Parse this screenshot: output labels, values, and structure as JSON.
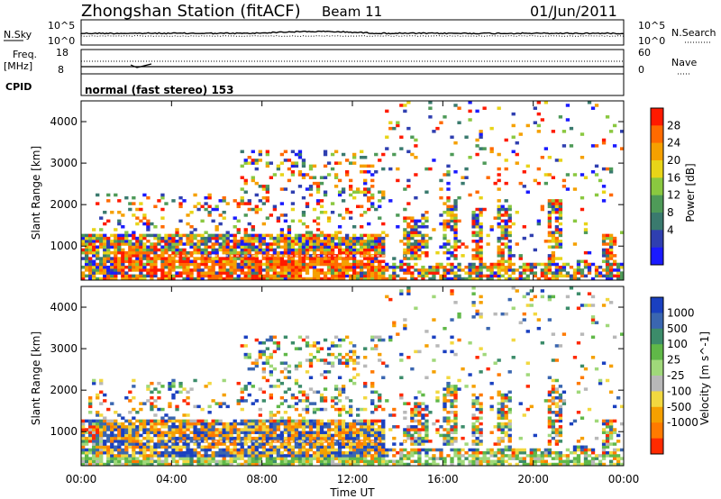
{
  "header": {
    "station": "Zhongshan Station (fitACF)",
    "beam": "Beam 11",
    "date": "01/Jun/2011"
  },
  "noise_panel": {
    "left_label": "N.Sky",
    "right_label": "N.Search",
    "left_ticks": [
      "10^5",
      "10^0"
    ],
    "right_ticks": [
      "10^5",
      "10^0"
    ]
  },
  "freq_panel": {
    "left_label_1": "Freq.",
    "left_label_2": "[MHz]",
    "right_label": "Nave",
    "left_ticks": [
      "18",
      "8"
    ],
    "right_ticks": [
      "60",
      "0"
    ]
  },
  "cpid": {
    "label": "CPID",
    "mode": "normal (fast stereo) 153"
  },
  "chart_data": [
    {
      "type": "heatmap",
      "title": "Power",
      "ylabel": "Slant Range [km]",
      "xlabel": "Time UT",
      "x_ticks": [
        "00:00",
        "04:00",
        "08:00",
        "12:00",
        "16:00",
        "20:00",
        "00:00"
      ],
      "x_range_hours": [
        0,
        24
      ],
      "y_range": [
        180,
        4500
      ],
      "y_ticks": [
        1000,
        2000,
        3000,
        4000
      ],
      "colorbar": {
        "label": "Power [dB]",
        "ticks": [
          "4",
          "8",
          "12",
          "16",
          "20",
          "24",
          "28"
        ],
        "colors": [
          "#1a1aff",
          "#2f3fb0",
          "#3a7a6e",
          "#4e9a58",
          "#8ac840",
          "#e8d418",
          "#f5a000",
          "#ff6a00",
          "#ff1a00"
        ]
      }
    },
    {
      "type": "heatmap",
      "title": "Velocity",
      "ylabel": "Slant Range [km]",
      "xlabel": "Time UT",
      "x_ticks": [
        "00:00",
        "04:00",
        "08:00",
        "12:00",
        "16:00",
        "20:00",
        "00:00"
      ],
      "x_range_hours": [
        0,
        24
      ],
      "y_range": [
        180,
        4500
      ],
      "y_ticks": [
        1000,
        2000,
        3000,
        4000
      ],
      "colorbar": {
        "label": "Velocity [m s^-1]",
        "ticks": [
          "1000",
          "500",
          "100",
          "25",
          "-25",
          "-100",
          "-500",
          "-1000"
        ],
        "colors": [
          "#1a40c0",
          "#3a66b0",
          "#3c8c6a",
          "#60b848",
          "#a0d87a",
          "#b8b8b8",
          "#f2d840",
          "#f5a000",
          "#ff7a00",
          "#ff2a00"
        ]
      }
    }
  ],
  "time_axis_label": "Time UT",
  "y_axis_label": "Slant Range [km]"
}
